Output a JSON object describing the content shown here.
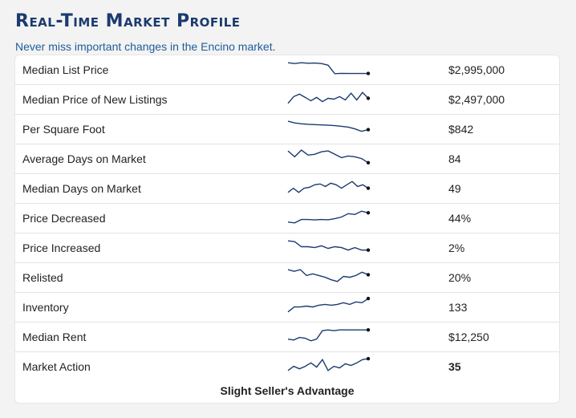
{
  "header": {
    "title": "Real-Time Market Profile",
    "subtitle": "Never miss important changes in the Encino market."
  },
  "colors": {
    "accent": "#1b3b6f",
    "spark": "#1b3b6f",
    "link": "#1f5c99"
  },
  "metrics": [
    {
      "label": "Median List Price",
      "value": "$2,995,000",
      "trend": [
        0.85,
        0.8,
        0.85,
        0.82,
        0.83,
        0.8,
        0.7,
        0.2,
        0.22,
        0.21,
        0.21,
        0.21,
        0.21
      ]
    },
    {
      "label": "Median Price of New Listings",
      "value": "$2,497,000",
      "trend": [
        0.2,
        0.6,
        0.75,
        0.55,
        0.35,
        0.55,
        0.3,
        0.5,
        0.45,
        0.6,
        0.4,
        0.8,
        0.4,
        0.85,
        0.5
      ]
    },
    {
      "label": "Per Square Foot",
      "value": "$842",
      "trend": [
        0.9,
        0.8,
        0.75,
        0.72,
        0.7,
        0.68,
        0.66,
        0.64,
        0.6,
        0.55,
        0.45,
        0.3,
        0.4
      ]
    },
    {
      "label": "Average Days on Market",
      "value": "84",
      "trend": [
        0.9,
        0.55,
        0.95,
        0.65,
        0.7,
        0.85,
        0.9,
        0.7,
        0.5,
        0.6,
        0.55,
        0.45,
        0.2
      ]
    },
    {
      "label": "Median Days on Market",
      "value": "49",
      "trend": [
        0.2,
        0.45,
        0.2,
        0.45,
        0.5,
        0.65,
        0.7,
        0.55,
        0.75,
        0.65,
        0.45,
        0.65,
        0.85,
        0.55,
        0.65,
        0.45
      ]
    },
    {
      "label": "Price Decreased",
      "value": "44%",
      "trend": [
        0.2,
        0.15,
        0.35,
        0.35,
        0.33,
        0.35,
        0.34,
        0.4,
        0.5,
        0.7,
        0.65,
        0.85,
        0.75
      ]
    },
    {
      "label": "Price Increased",
      "value": "2%",
      "trend": [
        0.85,
        0.8,
        0.5,
        0.5,
        0.45,
        0.55,
        0.4,
        0.5,
        0.45,
        0.3,
        0.45,
        0.3,
        0.3
      ]
    },
    {
      "label": "Relisted",
      "value": "20%",
      "trend": [
        0.9,
        0.8,
        0.9,
        0.55,
        0.65,
        0.55,
        0.45,
        0.3,
        0.2,
        0.5,
        0.45,
        0.55,
        0.75,
        0.6
      ]
    },
    {
      "label": "Inventory",
      "value": "133",
      "trend": [
        0.15,
        0.45,
        0.45,
        0.5,
        0.45,
        0.55,
        0.6,
        0.55,
        0.6,
        0.7,
        0.6,
        0.75,
        0.7,
        0.95
      ]
    },
    {
      "label": "Median Rent",
      "value": "$12,250",
      "trend": [
        0.3,
        0.25,
        0.4,
        0.35,
        0.2,
        0.3,
        0.8,
        0.85,
        0.8,
        0.85,
        0.85,
        0.85,
        0.85,
        0.85,
        0.85
      ]
    },
    {
      "label": "Market Action",
      "value": "35",
      "trend": [
        0.2,
        0.45,
        0.3,
        0.45,
        0.65,
        0.4,
        0.85,
        0.2,
        0.45,
        0.35,
        0.6,
        0.5,
        0.65,
        0.85,
        0.9
      ]
    }
  ],
  "market_action_summary": "Slight Seller's Advantage"
}
